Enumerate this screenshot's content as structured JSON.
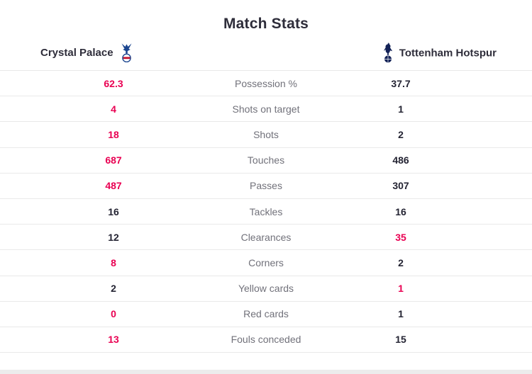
{
  "title": "Match Stats",
  "teams": {
    "home": {
      "name": "Crystal Palace",
      "badge": "crystal-palace-crest"
    },
    "away": {
      "name": "Tottenham Hotspur",
      "badge": "tottenham-hotspur-crest"
    }
  },
  "colors": {
    "highlight": "#e90052",
    "value_dark": "#242433",
    "label_gray": "#71717a",
    "heading": "#2e2d3a",
    "divider": "#e9e9e9"
  },
  "rows": [
    {
      "label": "Possession %",
      "home": "62.3",
      "away": "37.7",
      "highlight": "home"
    },
    {
      "label": "Shots on target",
      "home": "4",
      "away": "1",
      "highlight": "home"
    },
    {
      "label": "Shots",
      "home": "18",
      "away": "2",
      "highlight": "home"
    },
    {
      "label": "Touches",
      "home": "687",
      "away": "486",
      "highlight": "home"
    },
    {
      "label": "Passes",
      "home": "487",
      "away": "307",
      "highlight": "home"
    },
    {
      "label": "Tackles",
      "home": "16",
      "away": "16",
      "highlight": "none"
    },
    {
      "label": "Clearances",
      "home": "12",
      "away": "35",
      "highlight": "away"
    },
    {
      "label": "Corners",
      "home": "8",
      "away": "2",
      "highlight": "home"
    },
    {
      "label": "Yellow cards",
      "home": "2",
      "away": "1",
      "highlight": "away"
    },
    {
      "label": "Red cards",
      "home": "0",
      "away": "1",
      "highlight": "home"
    },
    {
      "label": "Fouls conceded",
      "home": "13",
      "away": "15",
      "highlight": "home"
    }
  ],
  "chart_data": {
    "type": "table",
    "title": "Match Stats",
    "categories": [
      "Possession %",
      "Shots on target",
      "Shots",
      "Touches",
      "Passes",
      "Tackles",
      "Clearances",
      "Corners",
      "Yellow cards",
      "Red cards",
      "Fouls conceded"
    ],
    "series": [
      {
        "name": "Crystal Palace",
        "values": [
          62.3,
          4,
          18,
          687,
          487,
          16,
          12,
          8,
          2,
          0,
          13
        ]
      },
      {
        "name": "Tottenham Hotspur",
        "values": [
          37.7,
          1,
          2,
          486,
          307,
          16,
          35,
          2,
          1,
          1,
          15
        ]
      }
    ],
    "layout_hints": {
      "home_column": "left",
      "away_column": "right",
      "highlight_color": "#e90052",
      "highlighted_cells": [
        "home Possession %",
        "home Shots on target",
        "home Shots",
        "home Touches",
        "home Passes",
        "away Clearances",
        "home Corners",
        "away Yellow cards",
        "home Red cards",
        "home Fouls conceded"
      ]
    }
  }
}
